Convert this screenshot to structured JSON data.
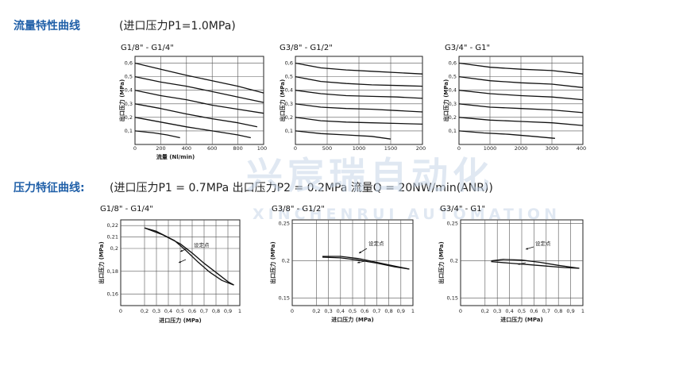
{
  "flow_section": {
    "heading": "流量特性曲线",
    "condition": "(进口压力P1=1.0MPa)"
  },
  "pressure_section": {
    "heading": "压力特征曲线:",
    "condition": "(进口压力P1 = 0.7MPa 出口压力P2 = 0.2MPa 流量Q = 20NW/min(ANR))"
  },
  "watermark": {
    "cn": "兴宸瑞自动化",
    "en": "XINCHENRUI AUTOMATION"
  },
  "chart_data": [
    {
      "type": "line",
      "title": "G1/8\" - G1/4\"",
      "xlabel": "流量 (Nl/min)",
      "ylabel": "出口压力 (MPa)",
      "xlim": [
        0,
        1000
      ],
      "ylim": [
        0,
        0.65
      ],
      "xticks": [
        0,
        200,
        400,
        600,
        800,
        1000
      ],
      "yticks": [
        0.1,
        0.2,
        0.3,
        0.4,
        0.5,
        0.6
      ],
      "grid": true,
      "series": [
        {
          "points": [
            [
              0,
              0.6
            ],
            [
              200,
              0.555
            ],
            [
              400,
              0.51
            ],
            [
              600,
              0.47
            ],
            [
              800,
              0.43
            ],
            [
              1000,
              0.38
            ]
          ]
        },
        {
          "points": [
            [
              0,
              0.5
            ],
            [
              200,
              0.46
            ],
            [
              400,
              0.43
            ],
            [
              600,
              0.39
            ],
            [
              800,
              0.35
            ],
            [
              1000,
              0.31
            ]
          ]
        },
        {
          "points": [
            [
              0,
              0.4
            ],
            [
              200,
              0.36
            ],
            [
              400,
              0.33
            ],
            [
              600,
              0.29
            ],
            [
              800,
              0.26
            ],
            [
              1000,
              0.23
            ]
          ]
        },
        {
          "points": [
            [
              0,
              0.3
            ],
            [
              200,
              0.265
            ],
            [
              400,
              0.225
            ],
            [
              600,
              0.19
            ],
            [
              800,
              0.16
            ],
            [
              950,
              0.13
            ]
          ]
        },
        {
          "points": [
            [
              0,
              0.2
            ],
            [
              200,
              0.165
            ],
            [
              400,
              0.13
            ],
            [
              600,
              0.1
            ],
            [
              800,
              0.07
            ],
            [
              900,
              0.05
            ]
          ]
        },
        {
          "points": [
            [
              0,
              0.1
            ],
            [
              150,
              0.085
            ],
            [
              250,
              0.07
            ],
            [
              350,
              0.05
            ]
          ]
        }
      ]
    },
    {
      "type": "line",
      "title": "G3/8\" - G1/2\"",
      "xlabel": "",
      "ylabel": "出口压力 (MPa)",
      "xlim": [
        0,
        2000
      ],
      "ylim": [
        0,
        0.65
      ],
      "xticks": [
        0,
        500,
        1000,
        1500,
        2000
      ],
      "yticks": [
        0.1,
        0.2,
        0.3,
        0.4,
        0.5,
        0.6
      ],
      "grid": true,
      "series": [
        {
          "points": [
            [
              0,
              0.6
            ],
            [
              400,
              0.565
            ],
            [
              800,
              0.55
            ],
            [
              1200,
              0.54
            ],
            [
              1600,
              0.53
            ],
            [
              2000,
              0.52
            ]
          ]
        },
        {
          "points": [
            [
              0,
              0.5
            ],
            [
              400,
              0.465
            ],
            [
              800,
              0.45
            ],
            [
              1200,
              0.44
            ],
            [
              1600,
              0.435
            ],
            [
              2000,
              0.43
            ]
          ]
        },
        {
          "points": [
            [
              0,
              0.4
            ],
            [
              400,
              0.375
            ],
            [
              800,
              0.36
            ],
            [
              1200,
              0.355
            ],
            [
              1600,
              0.35
            ],
            [
              2000,
              0.34
            ]
          ]
        },
        {
          "points": [
            [
              0,
              0.3
            ],
            [
              400,
              0.275
            ],
            [
              800,
              0.265
            ],
            [
              1200,
              0.26
            ],
            [
              1600,
              0.25
            ],
            [
              2000,
              0.24
            ]
          ]
        },
        {
          "points": [
            [
              0,
              0.2
            ],
            [
              400,
              0.175
            ],
            [
              800,
              0.165
            ],
            [
              1200,
              0.16
            ],
            [
              1600,
              0.155
            ],
            [
              2000,
              0.15
            ]
          ]
        },
        {
          "points": [
            [
              0,
              0.1
            ],
            [
              400,
              0.08
            ],
            [
              800,
              0.07
            ],
            [
              1200,
              0.06
            ],
            [
              1500,
              0.04
            ]
          ]
        }
      ]
    },
    {
      "type": "line",
      "title": "G3/4\" - G1\"",
      "xlabel": "",
      "ylabel": "出口压力 (MPa)",
      "xlim": [
        0,
        4000
      ],
      "ylim": [
        0,
        0.65
      ],
      "xticks": [
        0,
        1000,
        2000,
        3000,
        4000
      ],
      "yticks": [
        0.1,
        0.2,
        0.3,
        0.4,
        0.5,
        0.6
      ],
      "grid": true,
      "series": [
        {
          "points": [
            [
              0,
              0.6
            ],
            [
              1000,
              0.57
            ],
            [
              2000,
              0.555
            ],
            [
              3000,
              0.545
            ],
            [
              4000,
              0.52
            ]
          ]
        },
        {
          "points": [
            [
              0,
              0.5
            ],
            [
              1000,
              0.47
            ],
            [
              2000,
              0.455
            ],
            [
              3000,
              0.445
            ],
            [
              4000,
              0.42
            ]
          ]
        },
        {
          "points": [
            [
              0,
              0.4
            ],
            [
              1000,
              0.375
            ],
            [
              2000,
              0.36
            ],
            [
              3000,
              0.35
            ],
            [
              4000,
              0.33
            ]
          ]
        },
        {
          "points": [
            [
              0,
              0.3
            ],
            [
              1000,
              0.275
            ],
            [
              2000,
              0.265
            ],
            [
              3000,
              0.255
            ],
            [
              4000,
              0.235
            ]
          ]
        },
        {
          "points": [
            [
              0,
              0.2
            ],
            [
              1000,
              0.18
            ],
            [
              2000,
              0.17
            ],
            [
              3000,
              0.16
            ],
            [
              4000,
              0.14
            ]
          ]
        },
        {
          "points": [
            [
              0,
              0.1
            ],
            [
              800,
              0.085
            ],
            [
              1600,
              0.075
            ],
            [
              2400,
              0.06
            ],
            [
              3100,
              0.045
            ]
          ]
        }
      ]
    },
    {
      "type": "line",
      "title": "G1/8\" - G1/4\"",
      "xlabel": "进口压力 (MPa)",
      "ylabel": "出口压力 (MPa)",
      "xlim": [
        0,
        1.0
      ],
      "ylim": [
        0.15,
        0.225
      ],
      "xticks": [
        0,
        0.2,
        0.3,
        0.4,
        0.5,
        0.6,
        0.7,
        0.8,
        0.9,
        1.0
      ],
      "yticks": [
        0.16,
        0.18,
        0.2,
        0.21,
        0.22
      ],
      "grid": true,
      "annotation": "设定点",
      "series": [
        {
          "points": [
            [
              0.2,
              0.218
            ],
            [
              0.35,
              0.212
            ],
            [
              0.5,
              0.204
            ],
            [
              0.6,
              0.196
            ],
            [
              0.7,
              0.187
            ],
            [
              0.8,
              0.179
            ],
            [
              0.9,
              0.171
            ],
            [
              0.95,
              0.168
            ]
          ]
        },
        {
          "points": [
            [
              0.2,
              0.218
            ],
            [
              0.3,
              0.215
            ],
            [
              0.45,
              0.207
            ],
            [
              0.55,
              0.198
            ],
            [
              0.65,
              0.188
            ],
            [
              0.75,
              0.179
            ],
            [
              0.85,
              0.172
            ],
            [
              0.95,
              0.168
            ]
          ]
        }
      ]
    },
    {
      "type": "line",
      "title": "G3/8\" - G1/2\"",
      "xlabel": "进口压力 (MPa)",
      "ylabel": "出口压力 (MPa)",
      "xlim": [
        0,
        1.0
      ],
      "ylim": [
        0.14,
        0.255
      ],
      "xticks": [
        0,
        0.2,
        0.3,
        0.4,
        0.5,
        0.6,
        0.7,
        0.8,
        0.9,
        1.0
      ],
      "yticks": [
        0.15,
        0.2,
        0.25
      ],
      "grid": true,
      "annotation": "设定点",
      "series": [
        {
          "points": [
            [
              0.25,
              0.205
            ],
            [
              0.4,
              0.204
            ],
            [
              0.55,
              0.201
            ],
            [
              0.7,
              0.197
            ],
            [
              0.85,
              0.192
            ],
            [
              0.97,
              0.189
            ]
          ]
        },
        {
          "points": [
            [
              0.25,
              0.206
            ],
            [
              0.4,
              0.206
            ],
            [
              0.55,
              0.203
            ],
            [
              0.7,
              0.198
            ],
            [
              0.85,
              0.193
            ],
            [
              0.97,
              0.189
            ]
          ]
        }
      ]
    },
    {
      "type": "line",
      "title": "G3/4\" - G1\"",
      "xlabel": "进口压力 (MPa)",
      "ylabel": "出口压力 (MPa)",
      "xlim": [
        0,
        1.0
      ],
      "ylim": [
        0.14,
        0.255
      ],
      "xticks": [
        0,
        0.2,
        0.3,
        0.4,
        0.5,
        0.6,
        0.7,
        0.8,
        0.9,
        1.0
      ],
      "yticks": [
        0.15,
        0.2,
        0.25
      ],
      "grid": true,
      "annotation": "设定点",
      "series": [
        {
          "points": [
            [
              0.25,
              0.199
            ],
            [
              0.4,
              0.197
            ],
            [
              0.55,
              0.195
            ],
            [
              0.7,
              0.193
            ],
            [
              0.85,
              0.191
            ],
            [
              0.97,
              0.19
            ]
          ]
        },
        {
          "points": [
            [
              0.25,
              0.2
            ],
            [
              0.35,
              0.202
            ],
            [
              0.5,
              0.201
            ],
            [
              0.65,
              0.198
            ],
            [
              0.8,
              0.194
            ],
            [
              0.97,
              0.19
            ]
          ]
        }
      ]
    }
  ]
}
